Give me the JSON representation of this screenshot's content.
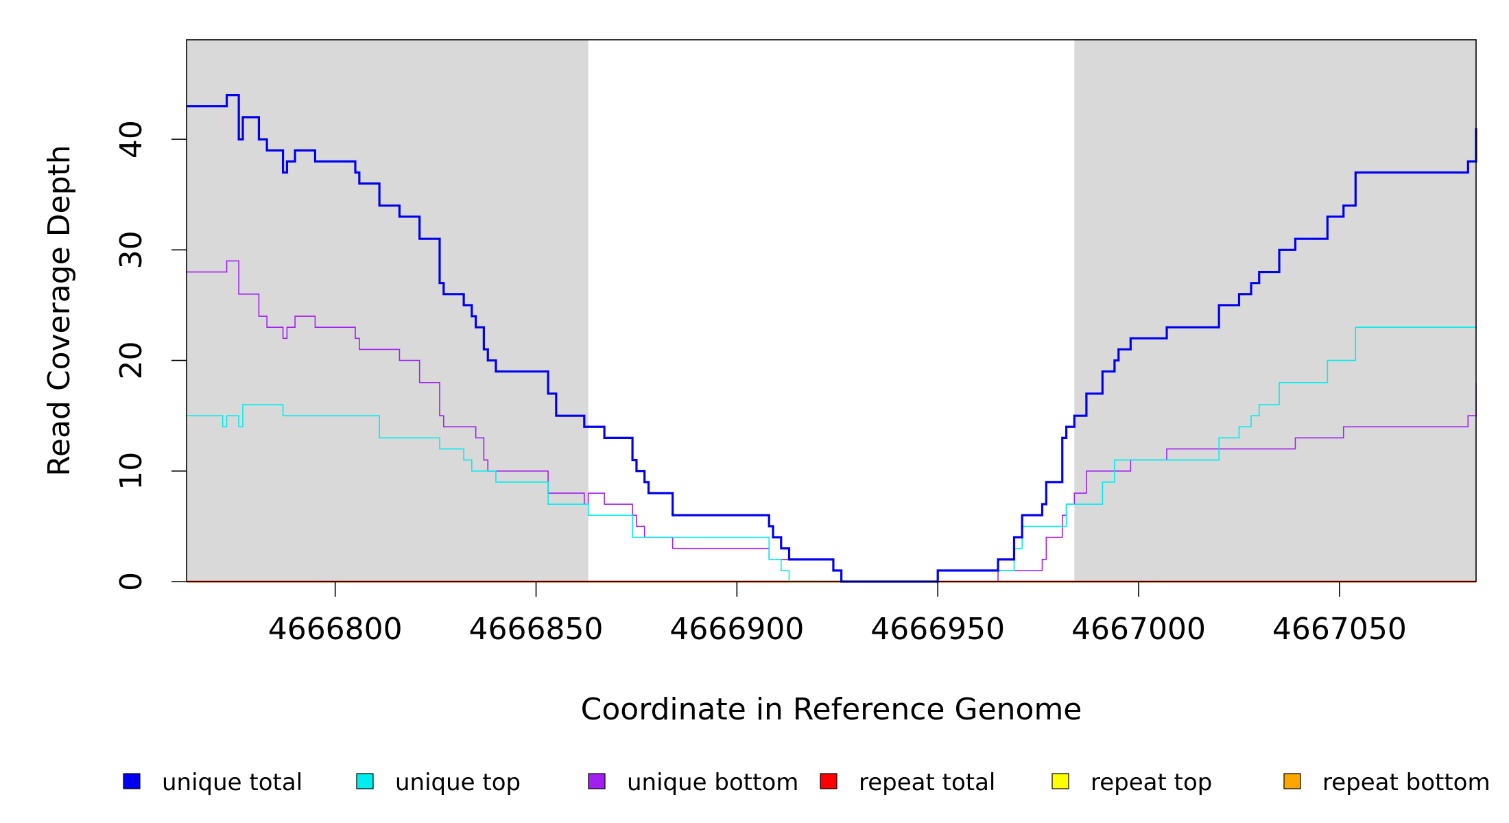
{
  "chart_data": {
    "type": "line",
    "xlabel": "Coordinate in Reference Genome",
    "ylabel": "Read Coverage Depth",
    "xlim": [
      4666763,
      4667084
    ],
    "ylim": [
      0,
      49
    ],
    "x_ticks": [
      {
        "value": 4666800,
        "label": "4666800"
      },
      {
        "value": 4666850,
        "label": "4666850"
      },
      {
        "value": 4666900,
        "label": "4666900"
      },
      {
        "value": 4666950,
        "label": "4666950"
      },
      {
        "value": 4667000,
        "label": "4667000"
      },
      {
        "value": 4667050,
        "label": "4667050"
      }
    ],
    "y_ticks": [
      {
        "value": 0,
        "label": "0"
      },
      {
        "value": 10,
        "label": "10"
      },
      {
        "value": 20,
        "label": "20"
      },
      {
        "value": 30,
        "label": "30"
      },
      {
        "value": 40,
        "label": "40"
      }
    ],
    "shaded_regions": [
      {
        "x_start": 4666763,
        "x_end": 4666863,
        "color": "#d9d9d9"
      },
      {
        "x_start": 4666984,
        "x_end": 4667084,
        "color": "#d9d9d9"
      }
    ],
    "grid": false,
    "legend_position": "bottom",
    "series": [
      {
        "name": "unique total",
        "color": "#0000ee",
        "step": true,
        "points": [
          [
            4666763,
            43
          ],
          [
            4666773,
            44
          ],
          [
            4666776,
            40
          ],
          [
            4666777,
            42
          ],
          [
            4666781,
            40
          ],
          [
            4666783,
            39
          ],
          [
            4666787,
            37
          ],
          [
            4666788,
            38
          ],
          [
            4666790,
            39
          ],
          [
            4666795,
            38
          ],
          [
            4666805,
            37
          ],
          [
            4666806,
            36
          ],
          [
            4666811,
            34
          ],
          [
            4666816,
            33
          ],
          [
            4666821,
            31
          ],
          [
            4666826,
            27
          ],
          [
            4666827,
            26
          ],
          [
            4666832,
            25
          ],
          [
            4666834,
            24
          ],
          [
            4666835,
            23
          ],
          [
            4666837,
            21
          ],
          [
            4666838,
            20
          ],
          [
            4666840,
            19
          ],
          [
            4666853,
            17
          ],
          [
            4666855,
            15
          ],
          [
            4666862,
            14
          ],
          [
            4666867,
            13
          ],
          [
            4666874,
            11
          ],
          [
            4666875,
            10
          ],
          [
            4666877,
            9
          ],
          [
            4666878,
            8
          ],
          [
            4666884,
            6
          ],
          [
            4666908,
            5
          ],
          [
            4666909,
            4
          ],
          [
            4666911,
            3
          ],
          [
            4666913,
            2
          ],
          [
            4666924,
            1
          ],
          [
            4666926,
            0
          ],
          [
            4666950,
            1
          ],
          [
            4666965,
            2
          ],
          [
            4666969,
            4
          ],
          [
            4666971,
            6
          ],
          [
            4666976,
            7
          ],
          [
            4666977,
            9
          ],
          [
            4666981,
            13
          ],
          [
            4666982,
            14
          ],
          [
            4666984,
            15
          ],
          [
            4666987,
            17
          ],
          [
            4666991,
            19
          ],
          [
            4666994,
            20
          ],
          [
            4666995,
            21
          ],
          [
            4666998,
            22
          ],
          [
            4667007,
            23
          ],
          [
            4667020,
            25
          ],
          [
            4667025,
            26
          ],
          [
            4667028,
            27
          ],
          [
            4667030,
            28
          ],
          [
            4667035,
            30
          ],
          [
            4667039,
            31
          ],
          [
            4667047,
            33
          ],
          [
            4667051,
            34
          ],
          [
            4667054,
            37
          ],
          [
            4667082,
            38
          ],
          [
            4667084,
            41
          ]
        ]
      },
      {
        "name": "unique top",
        "color": "#00eeee",
        "step": true,
        "points": [
          [
            4666763,
            15
          ],
          [
            4666772,
            14
          ],
          [
            4666773,
            15
          ],
          [
            4666776,
            14
          ],
          [
            4666777,
            16
          ],
          [
            4666787,
            15
          ],
          [
            4666811,
            13
          ],
          [
            4666826,
            12
          ],
          [
            4666832,
            11
          ],
          [
            4666834,
            10
          ],
          [
            4666840,
            9
          ],
          [
            4666853,
            7
          ],
          [
            4666863,
            6
          ],
          [
            4666874,
            4
          ],
          [
            4666884,
            4
          ],
          [
            4666908,
            2
          ],
          [
            4666911,
            1
          ],
          [
            4666913,
            0
          ],
          [
            4666950,
            1
          ],
          [
            4666969,
            3
          ],
          [
            4666971,
            5
          ],
          [
            4666982,
            7
          ],
          [
            4666991,
            9
          ],
          [
            4666994,
            11
          ],
          [
            4666998,
            11
          ],
          [
            4667020,
            13
          ],
          [
            4667025,
            14
          ],
          [
            4667028,
            15
          ],
          [
            4667030,
            16
          ],
          [
            4667035,
            18
          ],
          [
            4667047,
            20
          ],
          [
            4667054,
            23
          ],
          [
            4667084,
            23
          ]
        ]
      },
      {
        "name": "unique bottom",
        "color": "#a020f0",
        "step": true,
        "points": [
          [
            4666763,
            28
          ],
          [
            4666773,
            29
          ],
          [
            4666776,
            26
          ],
          [
            4666781,
            24
          ],
          [
            4666783,
            23
          ],
          [
            4666787,
            22
          ],
          [
            4666788,
            23
          ],
          [
            4666790,
            24
          ],
          [
            4666795,
            23
          ],
          [
            4666805,
            22
          ],
          [
            4666806,
            21
          ],
          [
            4666816,
            20
          ],
          [
            4666821,
            18
          ],
          [
            4666826,
            15
          ],
          [
            4666827,
            14
          ],
          [
            4666835,
            13
          ],
          [
            4666837,
            11
          ],
          [
            4666838,
            10
          ],
          [
            4666853,
            8
          ],
          [
            4666862,
            7
          ],
          [
            4666863,
            8
          ],
          [
            4666867,
            7
          ],
          [
            4666874,
            6
          ],
          [
            4666875,
            5
          ],
          [
            4666877,
            4
          ],
          [
            4666884,
            3
          ],
          [
            4666908,
            2
          ],
          [
            4666913,
            2
          ],
          [
            4666924,
            1
          ],
          [
            4666926,
            0
          ],
          [
            4666950,
            0
          ],
          [
            4666965,
            1
          ],
          [
            4666976,
            2
          ],
          [
            4666977,
            4
          ],
          [
            4666981,
            6
          ],
          [
            4666982,
            7
          ],
          [
            4666984,
            8
          ],
          [
            4666987,
            10
          ],
          [
            4666998,
            11
          ],
          [
            4667007,
            12
          ],
          [
            4667039,
            13
          ],
          [
            4667051,
            14
          ],
          [
            4667082,
            15
          ],
          [
            4667084,
            18
          ]
        ]
      },
      {
        "name": "repeat total",
        "color": "#ff0000",
        "step": true,
        "points": [
          [
            4666763,
            0
          ],
          [
            4667084,
            0
          ]
        ]
      },
      {
        "name": "repeat top",
        "color": "#ffff00",
        "step": true,
        "points": [
          [
            4666763,
            0
          ],
          [
            4667084,
            0
          ]
        ]
      },
      {
        "name": "repeat bottom",
        "color": "#ffa500",
        "step": true,
        "points": [
          [
            4666763,
            0
          ],
          [
            4667084,
            0
          ]
        ]
      }
    ]
  }
}
